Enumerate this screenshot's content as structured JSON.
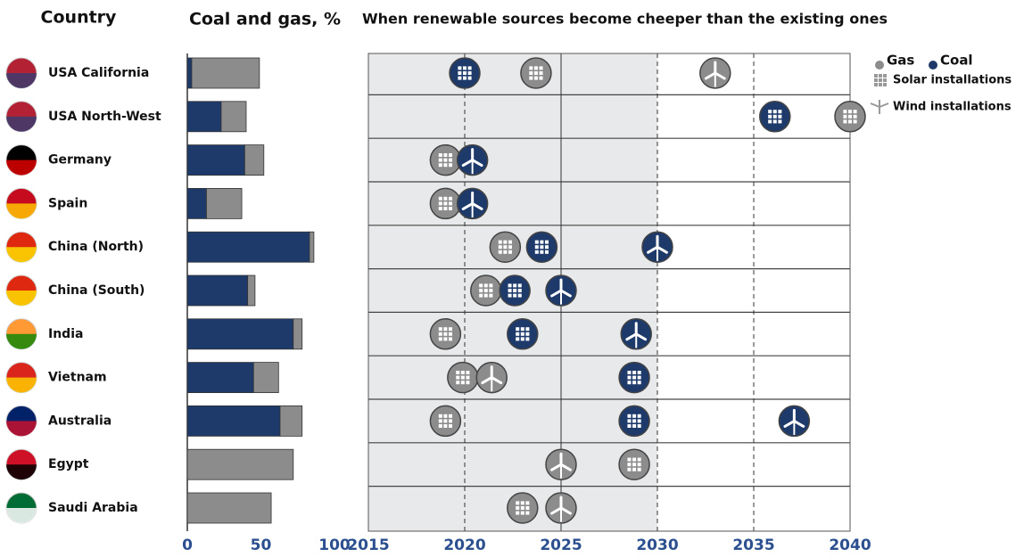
{
  "chart_data": [
    {
      "type": "bar",
      "title": "Coal and gas, %",
      "category_label": "Country",
      "categories": [
        "USA California",
        "USA North-West",
        "Germany",
        "Spain",
        "China (North)",
        "China (South)",
        "India",
        "Vietnam",
        "Australia",
        "Egypt",
        "Saudi Arabia"
      ],
      "series": [
        {
          "color": "#1d3a6b",
          "values": [
            3,
            23,
            39,
            13,
            83,
            41,
            72,
            45,
            63,
            0,
            0
          ]
        },
        {
          "color": "#8c8c8c",
          "values": [
            46,
            17,
            13,
            24,
            3,
            5,
            6,
            17,
            15,
            72,
            57
          ]
        }
      ],
      "stacked": true,
      "xlim": [
        0,
        100
      ],
      "xticks": [
        0,
        50,
        100
      ]
    },
    {
      "type": "timeline",
      "title": "When renewable sources become cheeper than the existing ones",
      "series": [
        {
          "name": "Gas",
          "color": "#8c8c8c",
          "solar_values": [
            2023.7,
            2040,
            2019,
            2019,
            2022.1,
            2021.1,
            2019,
            2019.9,
            2019,
            2028.8,
            2023
          ],
          "wind_values": [
            2033,
            null,
            null,
            null,
            null,
            null,
            null,
            2021.4,
            null,
            2025,
            2025
          ]
        },
        {
          "name": "Coal",
          "color": "#1d3a6b",
          "solar_values": [
            2020,
            2036.1,
            null,
            null,
            2024,
            2022.6,
            2023,
            2028.8,
            2028.8,
            null,
            null
          ],
          "wind_values": [
            null,
            null,
            2020.4,
            2020.4,
            2030,
            2025,
            2028.9,
            null,
            2037.1,
            null,
            null
          ]
        }
      ],
      "icon_legend": [
        "Solar installations",
        "Wind installations"
      ],
      "xlim": [
        2015,
        2040
      ],
      "xticks": [
        2015,
        2020,
        2025,
        2030,
        2035,
        2040
      ],
      "dashed_grid": [
        2020,
        2030,
        2035
      ],
      "shaded_until": 2030
    }
  ]
}
